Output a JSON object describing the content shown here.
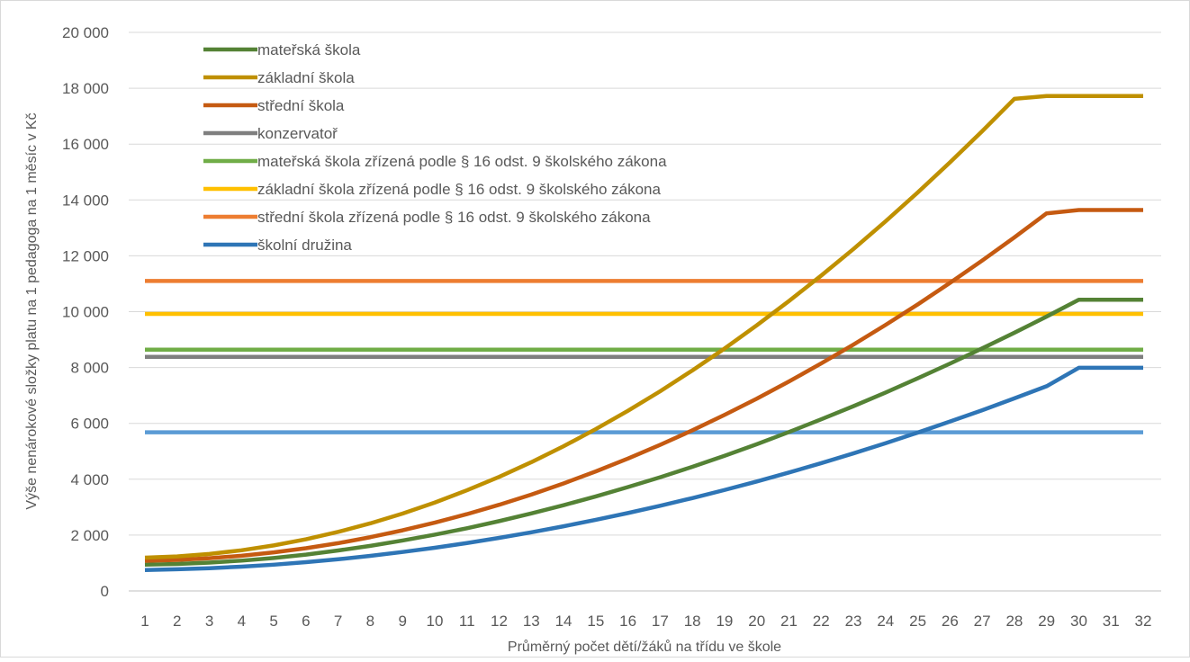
{
  "chart_data": {
    "type": "line",
    "title": "",
    "xlabel": "Průměrný počet dětí/žáků na třídu ve škole",
    "ylabel": "Výše nenárokové složky platu na 1 pedagoga na 1 měsíc v Kč",
    "x": [
      1,
      2,
      3,
      4,
      5,
      6,
      7,
      8,
      9,
      10,
      11,
      12,
      13,
      14,
      15,
      16,
      17,
      18,
      19,
      20,
      21,
      22,
      23,
      24,
      25,
      26,
      27,
      28,
      29,
      30,
      31,
      32
    ],
    "ylim": [
      0,
      20000
    ],
    "yticks": [
      0,
      2000,
      4000,
      6000,
      8000,
      10000,
      12000,
      14000,
      16000,
      18000,
      20000
    ],
    "ytick_labels": [
      "0",
      "2 000",
      "4 000",
      "6 000",
      "8 000",
      "10 000",
      "12 000",
      "14 000",
      "16 000",
      "18 000",
      "20 000"
    ],
    "grid": "horizontal",
    "legend_position": "top-left",
    "series": [
      {
        "name": "mateřská škola",
        "color": "#548235",
        "values": [
          940,
          965,
          1015,
          1085,
          1180,
          1300,
          1450,
          1615,
          1805,
          2015,
          2245,
          2500,
          2775,
          3070,
          3385,
          3720,
          4070,
          4445,
          4840,
          5255,
          5690,
          6145,
          6615,
          7105,
          7615,
          8140,
          8685,
          9245,
          9825,
          10425,
          10425,
          10425
        ],
        "draw_under_constant": true
      },
      {
        "name": "základní škola",
        "color": "#BF9000",
        "values": [
          1190,
          1235,
          1325,
          1455,
          1630,
          1850,
          2115,
          2420,
          2770,
          3165,
          3605,
          4085,
          4610,
          5180,
          5795,
          6450,
          7150,
          7895,
          8680,
          9510,
          10380,
          11290,
          12240,
          13235,
          14270,
          15345,
          16460,
          17620,
          17720,
          17720,
          17720,
          17720
        ],
        "x_override": [
          1,
          2,
          3,
          4,
          5,
          6,
          7,
          8,
          9,
          10,
          11,
          12,
          13,
          14,
          15,
          16,
          17,
          18,
          19,
          20,
          21,
          22,
          23,
          24,
          25,
          26,
          27,
          28,
          29,
          30,
          31,
          32
        ]
      },
      {
        "name": "střední škola",
        "color": "#C55A11",
        "values": [
          1080,
          1110,
          1170,
          1260,
          1380,
          1530,
          1710,
          1925,
          2170,
          2445,
          2750,
          3085,
          3450,
          3850,
          4280,
          4740,
          5230,
          5750,
          6305,
          6885,
          7500,
          8145,
          8820,
          9525,
          10260,
          11030,
          11830,
          12660,
          13520,
          13640,
          13640,
          13640
        ]
      },
      {
        "name": "konzervatoř",
        "color": "#7F7F7F",
        "values": [
          8380,
          8380,
          8380,
          8380,
          8380,
          8380,
          8380,
          8380,
          8380,
          8380,
          8380,
          8380,
          8380,
          8380,
          8380,
          8380,
          8380,
          8380,
          8380,
          8380,
          8380,
          8380,
          8380,
          8380,
          8380,
          8380,
          8380,
          8380,
          8380,
          8380,
          8380,
          8380
        ]
      },
      {
        "name": "mateřská škola zřízená podle § 16 odst. 9 školského zákona",
        "color": "#70AD47",
        "values": [
          8640,
          8640,
          8640,
          8640,
          8640,
          8640,
          8640,
          8640,
          8640,
          8640,
          8640,
          8640,
          8640,
          8640,
          8640,
          8640,
          8640,
          8640,
          8640,
          8640,
          8640,
          8640,
          8640,
          8640,
          8640,
          8640,
          8640,
          8640,
          8640,
          8640,
          8640,
          8640
        ]
      },
      {
        "name": "základní škola zřízená podle § 16 odst. 9 školského zákona",
        "color": "#FFC000",
        "values": [
          9920,
          9920,
          9920,
          9920,
          9920,
          9920,
          9920,
          9920,
          9920,
          9920,
          9920,
          9920,
          9920,
          9920,
          9920,
          9920,
          9920,
          9920,
          9920,
          9920,
          9920,
          9920,
          9920,
          9920,
          9920,
          9920,
          9920,
          9920,
          9920,
          9920,
          9920,
          9920
        ]
      },
      {
        "name": "střední škola zřízená podle § 16 odst. 9 školského zákona",
        "color": "#ED7D31",
        "values": [
          11100,
          11100,
          11100,
          11100,
          11100,
          11100,
          11100,
          11100,
          11100,
          11100,
          11100,
          11100,
          11100,
          11100,
          11100,
          11100,
          11100,
          11100,
          11100,
          11100,
          11100,
          11100,
          11100,
          11100,
          11100,
          11100,
          11100,
          11100,
          11100,
          11100,
          11100,
          11100
        ]
      },
      {
        "name": "školní družina",
        "color": "#2E75B6",
        "values": [
          750,
          775,
          815,
          870,
          940,
          1030,
          1135,
          1255,
          1395,
          1545,
          1715,
          1900,
          2100,
          2315,
          2545,
          2790,
          3050,
          3325,
          3615,
          3920,
          4240,
          4575,
          4925,
          5290,
          5670,
          6065,
          6470,
          6895,
          7330,
          7990,
          7990,
          7990
        ]
      },
      {
        "name": "",
        "color": "#5B9BD5",
        "unlisted": true,
        "values": [
          5680,
          5680,
          5680,
          5680,
          5680,
          5680,
          5680,
          5680,
          5680,
          5680,
          5680,
          5680,
          5680,
          5680,
          5680,
          5680,
          5680,
          5680,
          5680,
          5680,
          5680,
          5680,
          5680,
          5680,
          5680,
          5680,
          5680,
          5680,
          5680,
          5680,
          5680,
          5680
        ]
      }
    ]
  }
}
